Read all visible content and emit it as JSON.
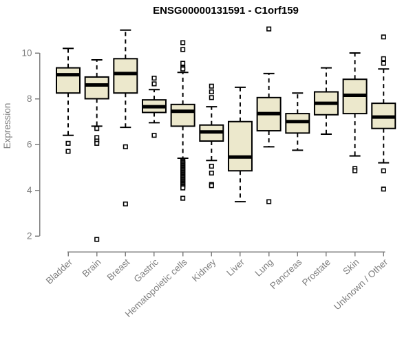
{
  "page": {
    "background": "#ffffff"
  },
  "chart_data": {
    "type": "boxplot",
    "title": "ENSG00000131591 - C1orf159",
    "xlabel": "",
    "ylabel": "Expression",
    "yticks": [
      2,
      4,
      6,
      8,
      10
    ],
    "ylim": [
      1.5,
      11.2
    ],
    "grid": false,
    "legend": false,
    "categories": [
      "Bladder",
      "Brain",
      "Breast",
      "Gastric",
      "Hematopoietic cells",
      "Kidney",
      "Liver",
      "Lung",
      "Pancreas",
      "Prostate",
      "Skin",
      "Unknown / Other"
    ],
    "series": [
      {
        "category": "Bladder",
        "whisker_low": 6.4,
        "q1": 8.25,
        "median": 9.05,
        "q3": 9.35,
        "whisker_high": 10.2,
        "outliers": [
          6.05,
          5.7
        ]
      },
      {
        "category": "Brain",
        "whisker_low": 6.8,
        "q1": 8.0,
        "median": 8.6,
        "q3": 8.95,
        "whisker_high": 9.7,
        "outliers": [
          6.7,
          6.3,
          6.15,
          6.05,
          1.85
        ]
      },
      {
        "category": "Breast",
        "whisker_low": 6.75,
        "q1": 8.25,
        "median": 9.1,
        "q3": 9.75,
        "whisker_high": 11.0,
        "outliers": [
          5.9,
          3.4
        ]
      },
      {
        "category": "Gastric",
        "whisker_low": 6.95,
        "q1": 7.4,
        "median": 7.65,
        "q3": 7.95,
        "whisker_high": 8.4,
        "outliers": [
          8.9,
          8.65,
          6.4
        ]
      },
      {
        "category": "Hematopoietic cells",
        "whisker_low": 5.4,
        "q1": 6.8,
        "median": 7.45,
        "q3": 7.75,
        "whisker_high": 9.15,
        "outliers": [
          10.45,
          10.15,
          9.55,
          9.35,
          9.3,
          5.3,
          5.25,
          5.2,
          5.15,
          5.1,
          5.05,
          5.0,
          4.95,
          4.9,
          4.85,
          4.8,
          4.75,
          4.7,
          4.65,
          4.6,
          4.55,
          4.5,
          4.45,
          4.4,
          4.35,
          4.3,
          4.25,
          4.2,
          4.15,
          4.1,
          3.65
        ]
      },
      {
        "category": "Kidney",
        "whisker_low": 5.3,
        "q1": 6.15,
        "median": 6.55,
        "q3": 6.85,
        "whisker_high": 7.65,
        "outliers": [
          8.55,
          8.3,
          8.05,
          5.05,
          4.75,
          4.25,
          4.2
        ]
      },
      {
        "category": "Liver",
        "whisker_low": 3.5,
        "q1": 4.85,
        "median": 5.45,
        "q3": 7.0,
        "whisker_high": 8.5,
        "outliers": []
      },
      {
        "category": "Lung",
        "whisker_low": 5.9,
        "q1": 6.6,
        "median": 7.35,
        "q3": 8.05,
        "whisker_high": 9.1,
        "outliers": [
          11.05,
          3.5
        ]
      },
      {
        "category": "Pancreas",
        "whisker_low": 5.75,
        "q1": 6.5,
        "median": 7.0,
        "q3": 7.35,
        "whisker_high": 8.25,
        "outliers": []
      },
      {
        "category": "Prostate",
        "whisker_low": 6.45,
        "q1": 7.3,
        "median": 7.8,
        "q3": 8.3,
        "whisker_high": 9.35,
        "outliers": []
      },
      {
        "category": "Skin",
        "whisker_low": 5.5,
        "q1": 7.35,
        "median": 8.15,
        "q3": 8.85,
        "whisker_high": 10.0,
        "outliers": [
          4.95,
          4.85
        ]
      },
      {
        "category": "Unknown / Other",
        "whisker_low": 5.2,
        "q1": 6.7,
        "median": 7.2,
        "q3": 7.8,
        "whisker_high": 9.3,
        "outliers": [
          10.7,
          9.75,
          9.55,
          4.85,
          4.05
        ]
      }
    ],
    "style": {
      "box_fill": "#ECE8CC",
      "box_border": "#000000",
      "median_color": "#000000",
      "whisker_color": "#000000",
      "outlier_color": "#000000",
      "axis_color": "#7E7E7E",
      "tick_label_color": "#7E7E7E",
      "title_color": "#000000",
      "background": "#FFFFFF"
    }
  }
}
